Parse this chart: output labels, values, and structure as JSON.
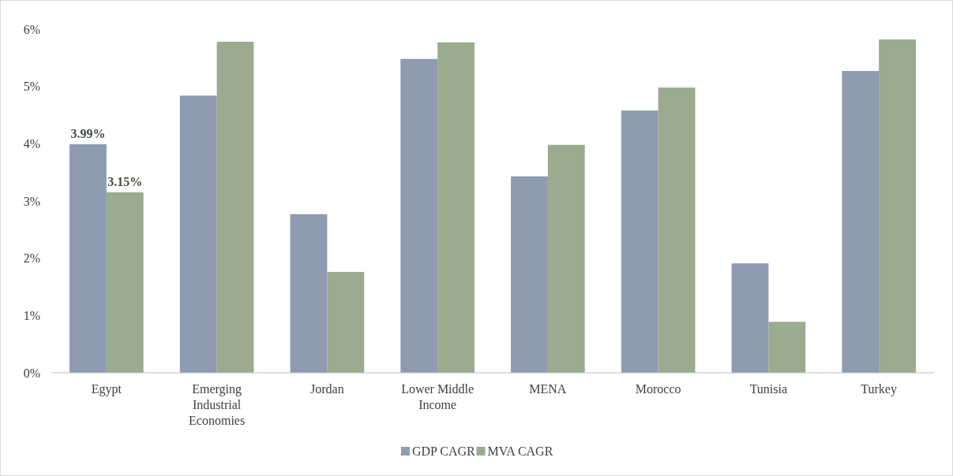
{
  "chart_data": {
    "type": "bar",
    "categories": [
      "Egypt",
      "Emerging Industrial Economies",
      "Jordan",
      "Lower Middle Income",
      "MENA",
      "Morocco",
      "Tunisia",
      "Turkey"
    ],
    "series": [
      {
        "name": "GDP CAGR",
        "color": "#8e9bb1",
        "values": [
          3.99,
          4.84,
          2.77,
          5.48,
          3.43,
          4.58,
          1.91,
          5.27
        ],
        "value_labels": [
          "3.99%",
          null,
          null,
          null,
          null,
          null,
          null,
          null
        ]
      },
      {
        "name": "MVA CAGR",
        "color": "#9aab8f",
        "values": [
          3.15,
          5.78,
          1.76,
          5.77,
          3.98,
          4.98,
          0.89,
          5.82
        ],
        "value_labels": [
          "3.15%",
          null,
          null,
          null,
          null,
          null,
          null,
          null
        ]
      }
    ],
    "ylim": [
      0,
      6
    ],
    "yticks": [
      {
        "value": 0,
        "label": "0%"
      },
      {
        "value": 1,
        "label": "1%"
      },
      {
        "value": 2,
        "label": "2%"
      },
      {
        "value": 3,
        "label": "3%"
      },
      {
        "value": 4,
        "label": "4%"
      },
      {
        "value": 5,
        "label": "5%"
      },
      {
        "value": 6,
        "label": "6%"
      }
    ],
    "grid": false,
    "legend": "bottom"
  }
}
